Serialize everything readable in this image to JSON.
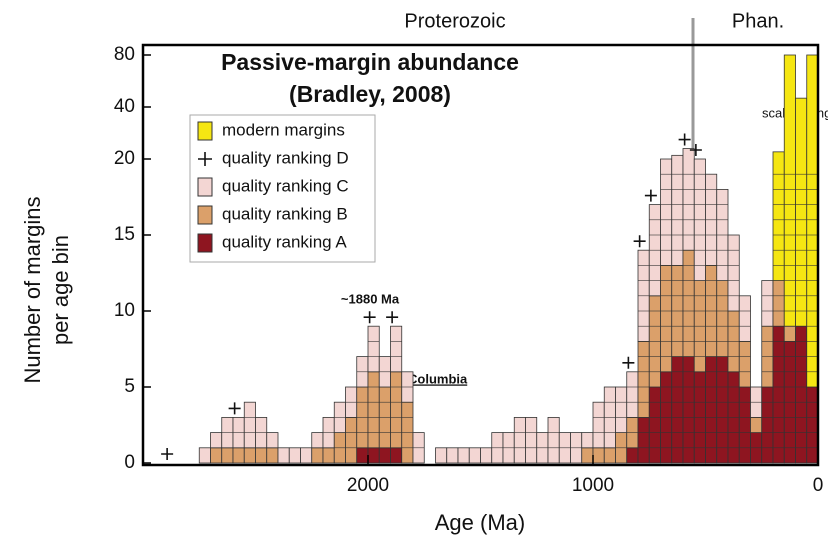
{
  "chart_data": {
    "type": "histogram",
    "title": "Passive-margin abundance",
    "subtitle": "(Bradley, 2008)",
    "x_label": "Age (Ma)",
    "y_label": [
      "Number of margins",
      "per age bin"
    ],
    "annotations": {
      "era_left": "Proterozoic",
      "era_right": "Phan.",
      "peak": "~1880 Ma",
      "columbia": "Columbia",
      "scale": "scale change"
    },
    "xlim": [
      3000,
      0
    ],
    "xticks": [
      2000,
      1000,
      0
    ],
    "ylim": [
      0,
      80
    ],
    "yticks": [
      0,
      5,
      10,
      15,
      20,
      40,
      80
    ],
    "bins": [
      3000,
      2950,
      2900,
      2850,
      2800,
      2750,
      2700,
      2650,
      2600,
      2550,
      2500,
      2450,
      2400,
      2350,
      2300,
      2250,
      2200,
      2150,
      2100,
      2050,
      2000,
      1950,
      1900,
      1850,
      1800,
      1750,
      1700,
      1650,
      1600,
      1550,
      1500,
      1450,
      1400,
      1350,
      1300,
      1250,
      1200,
      1150,
      1100,
      1050,
      1000,
      950,
      900,
      850,
      800,
      750,
      700,
      650,
      600,
      550,
      500,
      450,
      400,
      350,
      300,
      250,
      200,
      150,
      100,
      50,
      0
    ],
    "series": [
      {
        "name": "quality ranking A",
        "color": "#8e1520",
        "values": [
          0,
          0,
          0,
          0,
          0,
          0,
          0,
          0,
          0,
          0,
          0,
          0,
          0,
          0,
          0,
          0,
          0,
          0,
          0,
          1,
          1,
          1,
          1,
          0,
          0,
          0,
          0,
          0,
          0,
          0,
          0,
          0,
          0,
          0,
          0,
          0,
          0,
          0,
          0,
          0,
          0,
          0,
          0,
          1,
          3,
          5,
          6,
          7,
          7,
          6,
          7,
          7,
          6,
          5,
          2,
          5,
          9,
          8,
          9,
          5
        ]
      },
      {
        "name": "quality ranking B",
        "color": "#dba06a",
        "values": [
          0,
          0,
          0,
          0,
          0,
          0,
          1,
          1,
          1,
          1,
          1,
          1,
          0,
          0,
          0,
          1,
          1,
          2,
          3,
          4,
          5,
          4,
          5,
          4,
          0,
          0,
          0,
          0,
          0,
          0,
          0,
          0,
          0,
          0,
          0,
          0,
          0,
          0,
          0,
          1,
          1,
          1,
          2,
          2,
          5,
          6,
          7,
          6,
          7,
          6,
          6,
          5,
          4,
          3,
          1,
          4,
          3,
          1,
          0,
          0
        ]
      },
      {
        "name": "quality ranking C",
        "color": "#f3d6d3",
        "values": [
          0,
          0,
          0,
          0,
          0,
          1,
          1,
          2,
          2,
          3,
          2,
          1,
          1,
          1,
          1,
          1,
          2,
          2,
          2,
          2,
          3,
          2,
          3,
          2,
          2,
          0,
          1,
          1,
          1,
          1,
          1,
          2,
          2,
          3,
          3,
          2,
          3,
          2,
          2,
          1,
          3,
          4,
          3,
          3,
          6,
          6,
          7,
          8,
          9,
          8,
          6,
          6,
          5,
          3,
          2,
          3,
          0,
          0,
          0,
          0
        ]
      },
      {
        "name": "quality ranking D",
        "marker": "plus",
        "color": "#111111",
        "values": [
          0,
          0,
          1,
          0,
          0,
          0,
          0,
          0,
          1,
          0,
          0,
          0,
          0,
          0,
          0,
          0,
          0,
          0,
          0,
          0,
          1,
          0,
          1,
          0,
          0,
          0,
          0,
          0,
          0,
          0,
          0,
          0,
          0,
          0,
          0,
          0,
          0,
          0,
          0,
          0,
          0,
          0,
          0,
          1,
          1,
          1,
          0,
          0,
          1,
          1,
          0,
          0,
          0,
          0,
          0,
          0,
          0,
          0,
          0,
          0
        ]
      },
      {
        "name": "modern margins",
        "color": "#f5e612",
        "values": [
          0,
          0,
          0,
          0,
          0,
          0,
          0,
          0,
          0,
          0,
          0,
          0,
          0,
          0,
          0,
          0,
          0,
          0,
          0,
          0,
          0,
          0,
          0,
          0,
          0,
          0,
          0,
          0,
          0,
          0,
          0,
          0,
          0,
          0,
          0,
          0,
          0,
          0,
          0,
          0,
          0,
          0,
          0,
          0,
          0,
          0,
          0,
          0,
          0,
          0,
          0,
          0,
          0,
          0,
          0,
          0,
          10,
          71,
          36,
          75
        ]
      }
    ]
  }
}
